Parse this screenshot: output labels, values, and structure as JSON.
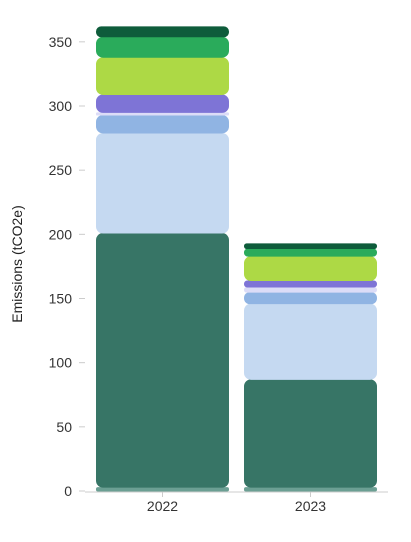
{
  "chart_data": {
    "type": "bar",
    "stacked": true,
    "ylabel": "Emissions (tCO2e)",
    "xlabel": "",
    "ylim": [
      0,
      360
    ],
    "yticks": [
      0,
      50,
      100,
      150,
      200,
      250,
      300,
      350
    ],
    "categories": [
      "2022",
      "2023"
    ],
    "grid": false,
    "series": [
      {
        "color": "#6b9f93",
        "values": [
          3,
          3
        ]
      },
      {
        "color": "#377566",
        "values": [
          198,
          84
        ]
      },
      {
        "color": "#c5d9f1",
        "values": [
          78,
          59
        ]
      },
      {
        "color": "#90b4e3",
        "values": [
          14,
          9
        ]
      },
      {
        "color": "#dcdcf7",
        "values": [
          2,
          4
        ]
      },
      {
        "color": "#7e74d6",
        "values": [
          14,
          5
        ]
      },
      {
        "color": "#add945",
        "values": [
          29,
          19
        ]
      },
      {
        "color": "#2aab5b",
        "values": [
          16,
          6
        ]
      },
      {
        "color": "#0e5c3b",
        "values": [
          8,
          4
        ]
      }
    ]
  }
}
